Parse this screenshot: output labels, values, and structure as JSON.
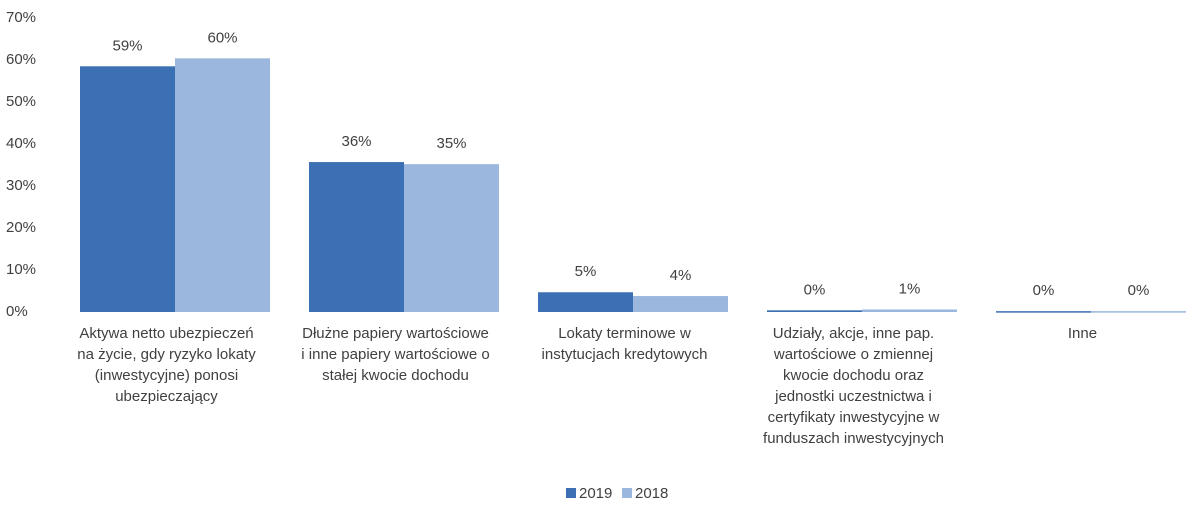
{
  "chart_data": {
    "type": "bar",
    "categories": [
      "Aktywa netto ubezpieczeń\nna życie, gdy ryzyko lokaty\n(inwestycyjne) ponosi\nubezpieczający",
      "Dłużne papiery wartościowe\ni inne papiery wartościowe o\nstałej kwocie dochodu",
      "Lokaty terminowe w\ninstytucjach kredytowych",
      "Udziały, akcje, inne pap.\nwartościowe  o zmiennej\nkwocie dochodu oraz\njednostki uczestnictwa i\ncertyfikaty inwestycyjne w\nfunduszach inwestycyjnych",
      "Inne"
    ],
    "series": [
      {
        "name": "2019",
        "color": "#3b70b4",
        "values": [
          58.5,
          35.7,
          4.7,
          0.4,
          0.2
        ],
        "value_labels": [
          "59%",
          "36%",
          "5%",
          "0%",
          "0%"
        ]
      },
      {
        "name": "2018",
        "color": "#9bb7dd",
        "values": [
          60.4,
          35.2,
          3.8,
          0.6,
          0.2
        ],
        "value_labels": [
          "60%",
          "35%",
          "4%",
          "1%",
          "0%"
        ]
      }
    ],
    "ylim": [
      0,
      70
    ],
    "yticks": [
      {
        "value": 0,
        "label": "0%"
      },
      {
        "value": 10,
        "label": "10%"
      },
      {
        "value": 20,
        "label": "20%"
      },
      {
        "value": 30,
        "label": "30%"
      },
      {
        "value": 40,
        "label": "40%"
      },
      {
        "value": 50,
        "label": "50%"
      },
      {
        "value": 60,
        "label": "60%"
      },
      {
        "value": 70,
        "label": "70%"
      }
    ],
    "grid": false,
    "legend": "bottom"
  }
}
